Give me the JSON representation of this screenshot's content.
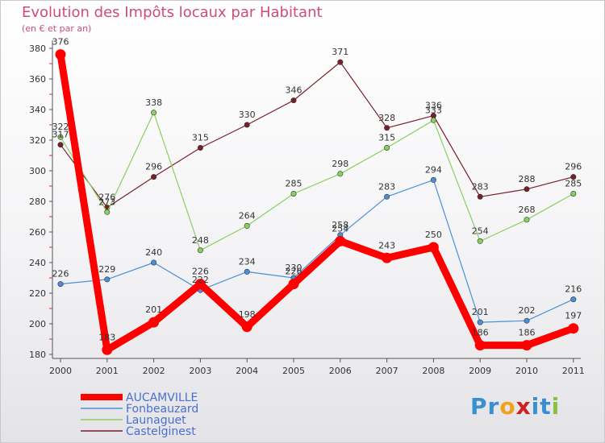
{
  "header": {
    "title": "Evolution des Impôts locaux par Habitant",
    "subtitle": "(en € et par an)"
  },
  "logo": {
    "text": "Proxiti",
    "letters": [
      {
        "ch": "P",
        "color": "#3a8fd0"
      },
      {
        "ch": "r",
        "color": "#3a8fd0"
      },
      {
        "ch": "o",
        "color": "#f0a020"
      },
      {
        "ch": "x",
        "color": "#d02020"
      },
      {
        "ch": "i",
        "color": "#3a8fd0"
      },
      {
        "ch": "t",
        "color": "#3a8fd0"
      },
      {
        "ch": "i",
        "color": "#88c040"
      }
    ]
  },
  "chart_data": {
    "type": "line",
    "title": "Evolution des Impôts locaux par Habitant",
    "subtitle": "(en € et par an)",
    "x": [
      "2000",
      "2001",
      "2002",
      "2003",
      "2004",
      "2005",
      "2006",
      "2007",
      "2008",
      "2009",
      "2010",
      "2011"
    ],
    "ylim": [
      180,
      380
    ],
    "yticks": [
      "180",
      "200",
      "220",
      "240",
      "260",
      "280",
      "300",
      "320",
      "340",
      "360",
      "380"
    ],
    "grid": false,
    "legend": "bottom-left",
    "series": [
      {
        "name": "AUCAMVILLE",
        "color": "#ff0000",
        "values": [
          376,
          183,
          201,
          226,
          198,
          226,
          254,
          243,
          250,
          186,
          186,
          197
        ],
        "labels": [
          "376",
          "183",
          "201",
          "226",
          "198",
          "226",
          "254",
          "243",
          "250",
          "186",
          "186",
          "197"
        ]
      },
      {
        "name": "Fonbeauzard",
        "color": "#4a90d9",
        "values": [
          226,
          229,
          240,
          222,
          234,
          230,
          258,
          283,
          294,
          201,
          202,
          216
        ],
        "labels": [
          "226",
          "229",
          "240",
          "222",
          "234",
          "230",
          "258",
          "283",
          "294",
          "201",
          "202",
          "216"
        ]
      },
      {
        "name": "Launaguet",
        "color": "#88d060",
        "values": [
          322,
          273,
          338,
          248,
          264,
          285,
          298,
          315,
          333,
          254,
          268,
          285
        ],
        "labels": [
          "322",
          "273",
          "338",
          "248",
          "264",
          "285",
          "298",
          "315",
          "333",
          "254",
          "268",
          "285"
        ]
      },
      {
        "name": "Castelginest",
        "color": "#7a1f2a",
        "values": [
          317,
          276,
          296,
          315,
          330,
          346,
          371,
          328,
          336,
          283,
          288,
          296
        ],
        "labels": [
          "317",
          "276",
          "296",
          "315",
          "330",
          "346",
          "371",
          "328",
          "336",
          "283",
          "288",
          "296"
        ]
      }
    ]
  }
}
